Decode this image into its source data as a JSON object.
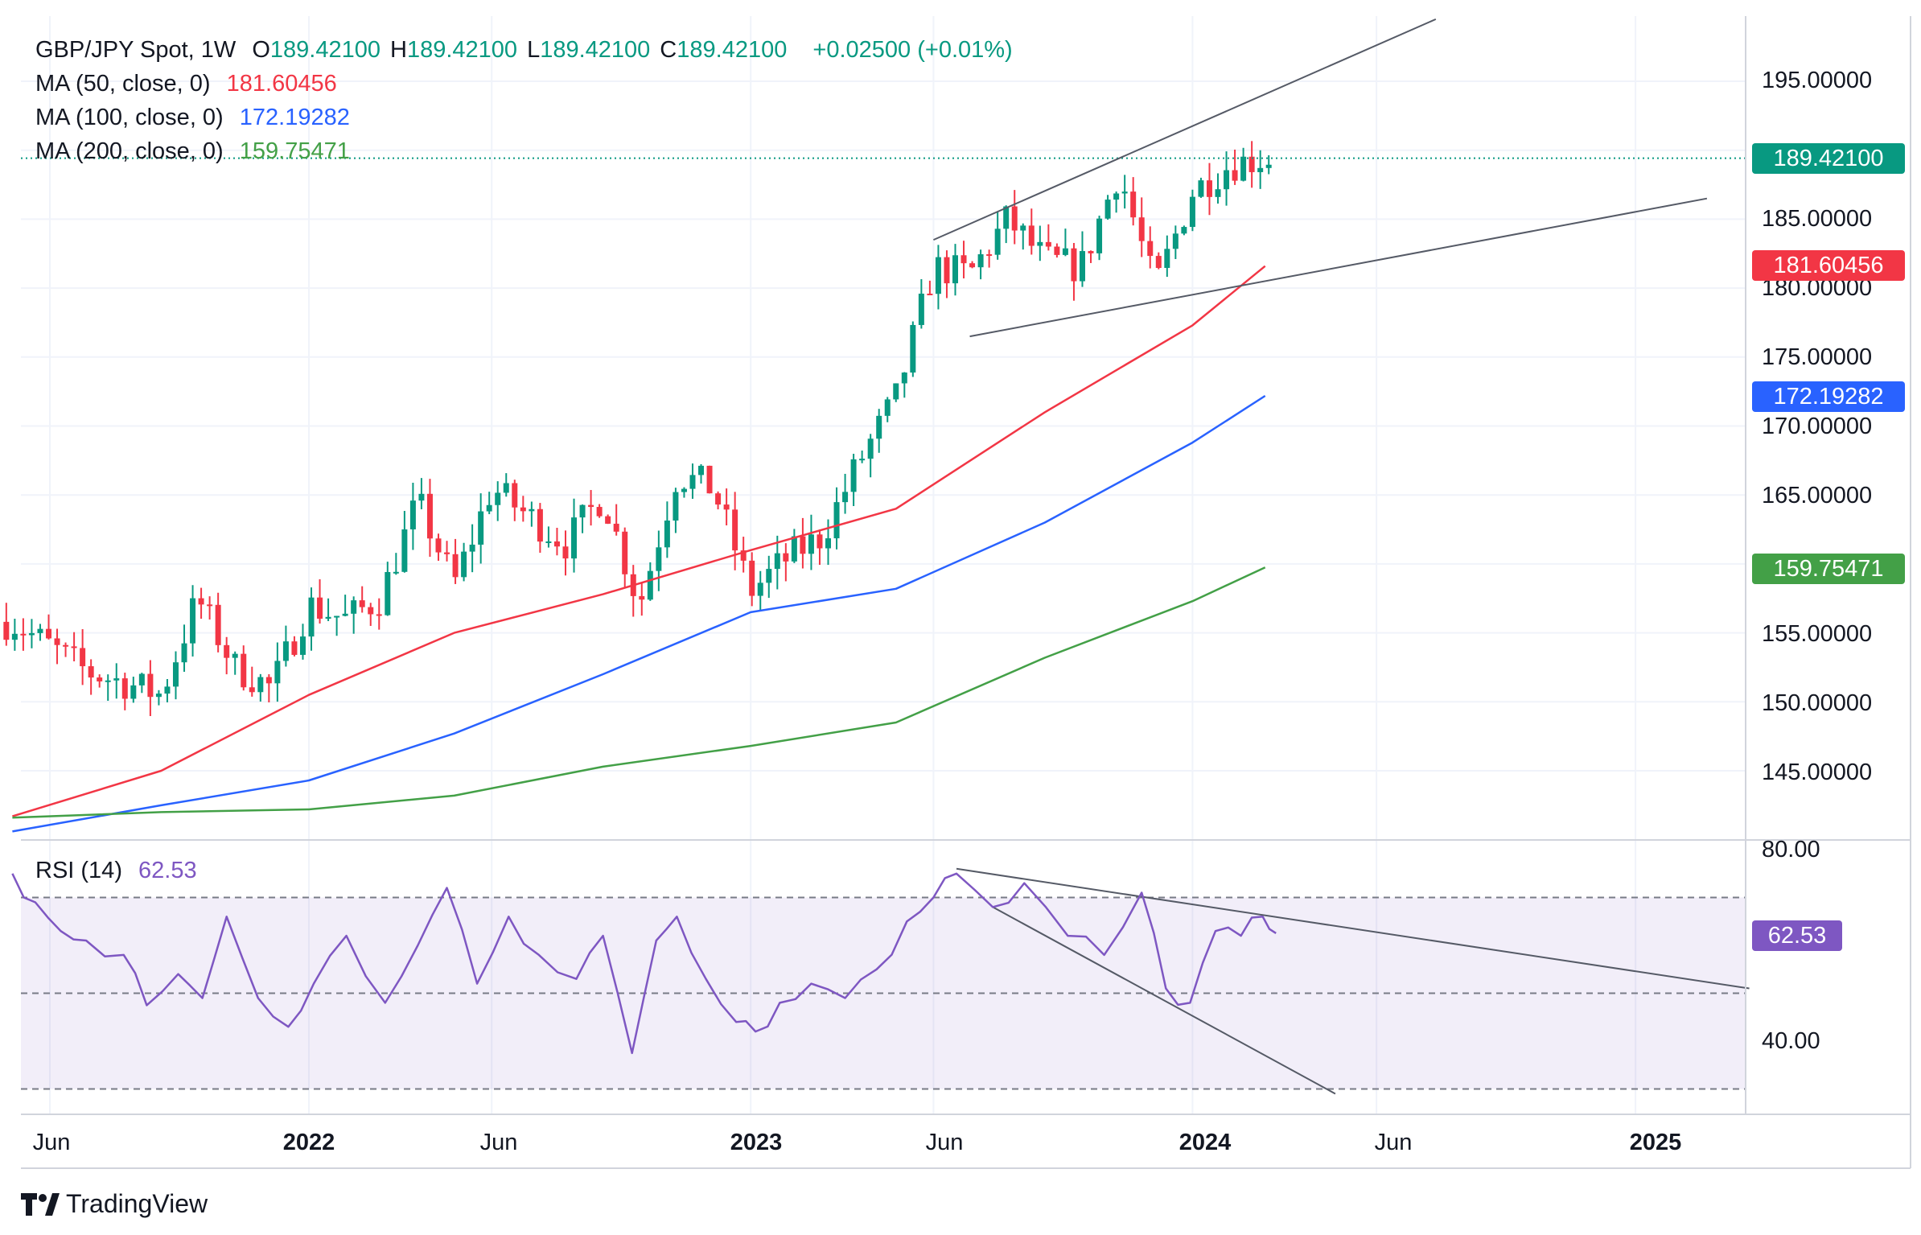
{
  "legend": {
    "symbol": "GBP/JPY Spot, 1W",
    "ohlc": [
      {
        "k": "O",
        "v": "189.42100"
      },
      {
        "k": "H",
        "v": "189.42100"
      },
      {
        "k": "L",
        "v": "189.42100"
      },
      {
        "k": "C",
        "v": "189.42100"
      }
    ],
    "change": "+0.02500 (+0.01%)",
    "ma50": {
      "label": "MA (50, close, 0)",
      "value": "181.60456",
      "color": "#f23645"
    },
    "ma100": {
      "label": "MA (100, close, 0)",
      "value": "172.19282",
      "color": "#2962ff"
    },
    "ma200": {
      "label": "MA (200, close, 0)",
      "value": "159.75471",
      "color": "#43a047"
    }
  },
  "price_tags": {
    "last": {
      "text": "189.42100",
      "color": "#089981"
    },
    "ma50": {
      "text": "181.60456",
      "color": "#f23645"
    },
    "ma100": {
      "text": "172.19282",
      "color": "#2962ff"
    },
    "ma200": {
      "text": "159.75471",
      "color": "#43a047"
    },
    "rsi": {
      "text": "62.53",
      "color": "#7e57c2"
    }
  },
  "rsi_legend": {
    "label": "RSI (14)",
    "value": "62.53"
  },
  "brand": "TradingView",
  "chart_data": [
    {
      "type": "candlestick",
      "title": "GBP/JPY Spot, 1W",
      "y_ticks": [
        "195.00000",
        "185.00000",
        "180.00000",
        "175.00000",
        "170.00000",
        "165.00000",
        "155.00000",
        "150.00000",
        "145.00000"
      ],
      "x_ticks": [
        {
          "label": "Jun",
          "bold": false
        },
        {
          "label": "2022",
          "bold": true
        },
        {
          "label": "Jun",
          "bold": false
        },
        {
          "label": "2023",
          "bold": true
        },
        {
          "label": "Jun",
          "bold": false
        },
        {
          "label": "2024",
          "bold": true
        },
        {
          "label": "Jun",
          "bold": false
        },
        {
          "label": "2025",
          "bold": true
        }
      ],
      "ylim": [
        140.5,
        200
      ],
      "last_close": 189.421,
      "close_series": [
        {
          "date": "2021-05-01",
          "value": 155.8
        },
        {
          "date": "2021-06-01",
          "value": 154.0
        },
        {
          "date": "2021-07-01",
          "value": 152.2
        },
        {
          "date": "2021-08-01",
          "value": 151.4
        },
        {
          "date": "2021-09-01",
          "value": 150.5
        },
        {
          "date": "2021-10-01",
          "value": 157.5
        },
        {
          "date": "2021-11-01",
          "value": 152.5
        },
        {
          "date": "2021-12-01",
          "value": 151.0
        },
        {
          "date": "2022-01-01",
          "value": 157.0
        },
        {
          "date": "2022-02-01",
          "value": 156.0
        },
        {
          "date": "2022-03-01",
          "value": 157.5
        },
        {
          "date": "2022-04-01",
          "value": 164.5
        },
        {
          "date": "2022-05-01",
          "value": 158.5
        },
        {
          "date": "2022-06-01",
          "value": 165.5
        },
        {
          "date": "2022-07-01",
          "value": 163.5
        },
        {
          "date": "2022-08-01",
          "value": 161.5
        },
        {
          "date": "2022-09-01",
          "value": 165.0
        },
        {
          "date": "2022-10-01",
          "value": 157.0
        },
        {
          "date": "2022-11-01",
          "value": 166.5
        },
        {
          "date": "2022-12-01",
          "value": 165.5
        },
        {
          "date": "2023-01-01",
          "value": 158.0
        },
        {
          "date": "2023-02-01",
          "value": 160.5
        },
        {
          "date": "2023-03-01",
          "value": 162.0
        },
        {
          "date": "2023-04-01",
          "value": 167.5
        },
        {
          "date": "2023-05-01",
          "value": 172.0
        },
        {
          "date": "2023-06-01",
          "value": 181.5
        },
        {
          "date": "2023-07-01",
          "value": 181.0
        },
        {
          "date": "2023-08-01",
          "value": 185.0
        },
        {
          "date": "2023-09-01",
          "value": 182.0
        },
        {
          "date": "2023-10-01",
          "value": 181.5
        },
        {
          "date": "2023-11-01",
          "value": 188.5
        },
        {
          "date": "2023-12-01",
          "value": 180.0
        },
        {
          "date": "2024-01-01",
          "value": 187.0
        },
        {
          "date": "2024-02-01",
          "value": 189.0
        },
        {
          "date": "2024-03-01",
          "value": 189.42
        }
      ],
      "series": [
        {
          "name": "MA (50, close, 0)",
          "color": "#f23645",
          "points": [
            {
              "date": "2021-05-01",
              "value": 141.7
            },
            {
              "date": "2021-09-01",
              "value": 145.0
            },
            {
              "date": "2022-01-01",
              "value": 150.5
            },
            {
              "date": "2022-05-01",
              "value": 155.0
            },
            {
              "date": "2022-09-01",
              "value": 157.8
            },
            {
              "date": "2023-01-01",
              "value": 161.0
            },
            {
              "date": "2023-05-01",
              "value": 164.0
            },
            {
              "date": "2023-09-01",
              "value": 171.0
            },
            {
              "date": "2024-01-01",
              "value": 177.3
            },
            {
              "date": "2024-03-01",
              "value": 181.6
            }
          ]
        },
        {
          "name": "MA (100, close, 0)",
          "color": "#2962ff",
          "points": [
            {
              "date": "2021-05-01",
              "value": 140.6
            },
            {
              "date": "2021-09-01",
              "value": 142.5
            },
            {
              "date": "2022-01-01",
              "value": 144.3
            },
            {
              "date": "2022-05-01",
              "value": 147.7
            },
            {
              "date": "2022-09-01",
              "value": 152.0
            },
            {
              "date": "2023-01-01",
              "value": 156.5
            },
            {
              "date": "2023-05-01",
              "value": 158.2
            },
            {
              "date": "2023-09-01",
              "value": 163.0
            },
            {
              "date": "2024-01-01",
              "value": 168.8
            },
            {
              "date": "2024-03-01",
              "value": 172.19
            }
          ]
        },
        {
          "name": "MA (200, close, 0)",
          "color": "#43a047",
          "points": [
            {
              "date": "2021-05-01",
              "value": 141.6
            },
            {
              "date": "2021-09-01",
              "value": 142.0
            },
            {
              "date": "2022-01-01",
              "value": 142.2
            },
            {
              "date": "2022-05-01",
              "value": 143.2
            },
            {
              "date": "2022-09-01",
              "value": 145.3
            },
            {
              "date": "2023-01-01",
              "value": 146.8
            },
            {
              "date": "2023-05-01",
              "value": 148.5
            },
            {
              "date": "2023-09-01",
              "value": 153.2
            },
            {
              "date": "2024-01-01",
              "value": 157.3
            },
            {
              "date": "2024-03-01",
              "value": 159.75
            }
          ]
        }
      ],
      "trendlines": [
        {
          "from": {
            "date": "2023-06-01",
            "value": 183.5
          },
          "to": {
            "date": "2024-07-20",
            "value": 199.5
          }
        },
        {
          "from": {
            "date": "2023-07-01",
            "value": 176.5
          },
          "to": {
            "date": "2025-03-01",
            "value": 186.5
          }
        }
      ],
      "grid": true
    },
    {
      "type": "line",
      "title": "RSI (14)",
      "y_ticks": [
        "80.00",
        "40.00"
      ],
      "bands": [
        70,
        50,
        30
      ],
      "ylim": [
        25,
        80
      ],
      "last": 62.53,
      "series": [
        {
          "name": "RSI (14)",
          "color": "#7e57c2",
          "points": [
            {
              "date": "2021-05-01",
              "value": 75.0
            },
            {
              "date": "2021-05-20",
              "value": 69.0
            },
            {
              "date": "2021-06-10",
              "value": 63.0
            },
            {
              "date": "2021-07-01",
              "value": 61.0
            },
            {
              "date": "2021-08-01",
              "value": 58.0
            },
            {
              "date": "2021-08-20",
              "value": 47.5
            },
            {
              "date": "2021-09-15",
              "value": 54.0
            },
            {
              "date": "2021-10-05",
              "value": 49.0
            },
            {
              "date": "2021-10-25",
              "value": 66.0
            },
            {
              "date": "2021-11-20",
              "value": 49.0
            },
            {
              "date": "2021-12-15",
              "value": 43.0
            },
            {
              "date": "2022-01-05",
              "value": 52.0
            },
            {
              "date": "2022-02-01",
              "value": 62.0
            },
            {
              "date": "2022-03-05",
              "value": 48.0
            },
            {
              "date": "2022-04-01",
              "value": 60.0
            },
            {
              "date": "2022-04-25",
              "value": 72.0
            },
            {
              "date": "2022-05-20",
              "value": 52.0
            },
            {
              "date": "2022-06-15",
              "value": 66.0
            },
            {
              "date": "2022-07-10",
              "value": 58.0
            },
            {
              "date": "2022-08-10",
              "value": 53.0
            },
            {
              "date": "2022-09-01",
              "value": 62.0
            },
            {
              "date": "2022-09-25",
              "value": 37.5
            },
            {
              "date": "2022-10-15",
              "value": 61.0
            },
            {
              "date": "2022-11-01",
              "value": 66.0
            },
            {
              "date": "2022-11-25",
              "value": 53.0
            },
            {
              "date": "2022-12-20",
              "value": 44.0
            },
            {
              "date": "2023-01-05",
              "value": 42.0
            },
            {
              "date": "2023-01-25",
              "value": 48.0
            },
            {
              "date": "2023-02-20",
              "value": 52.0
            },
            {
              "date": "2023-03-20",
              "value": 49.0
            },
            {
              "date": "2023-04-15",
              "value": 55.0
            },
            {
              "date": "2023-05-10",
              "value": 65.0
            },
            {
              "date": "2023-06-01",
              "value": 70.0
            },
            {
              "date": "2023-06-20",
              "value": 75.0
            },
            {
              "date": "2023-07-20",
              "value": 68.0
            },
            {
              "date": "2023-08-15",
              "value": 73.0
            },
            {
              "date": "2023-09-20",
              "value": 62.0
            },
            {
              "date": "2023-10-20",
              "value": 58.0
            },
            {
              "date": "2023-11-20",
              "value": 71.0
            },
            {
              "date": "2023-12-10",
              "value": 51.0
            },
            {
              "date": "2023-12-30",
              "value": 48.0
            },
            {
              "date": "2024-01-20",
              "value": 63.0
            },
            {
              "date": "2024-02-10",
              "value": 62.0
            },
            {
              "date": "2024-02-28",
              "value": 66.0
            },
            {
              "date": "2024-03-10",
              "value": 62.53
            }
          ]
        }
      ],
      "trendlines": [
        {
          "from": {
            "date": "2023-06-20",
            "value": 76.0
          },
          "to": {
            "date": "2025-04-05",
            "value": 51.0
          }
        },
        {
          "from": {
            "date": "2023-07-20",
            "value": 68.0
          },
          "to": {
            "date": "2024-04-28",
            "value": 29.0
          }
        }
      ]
    }
  ]
}
